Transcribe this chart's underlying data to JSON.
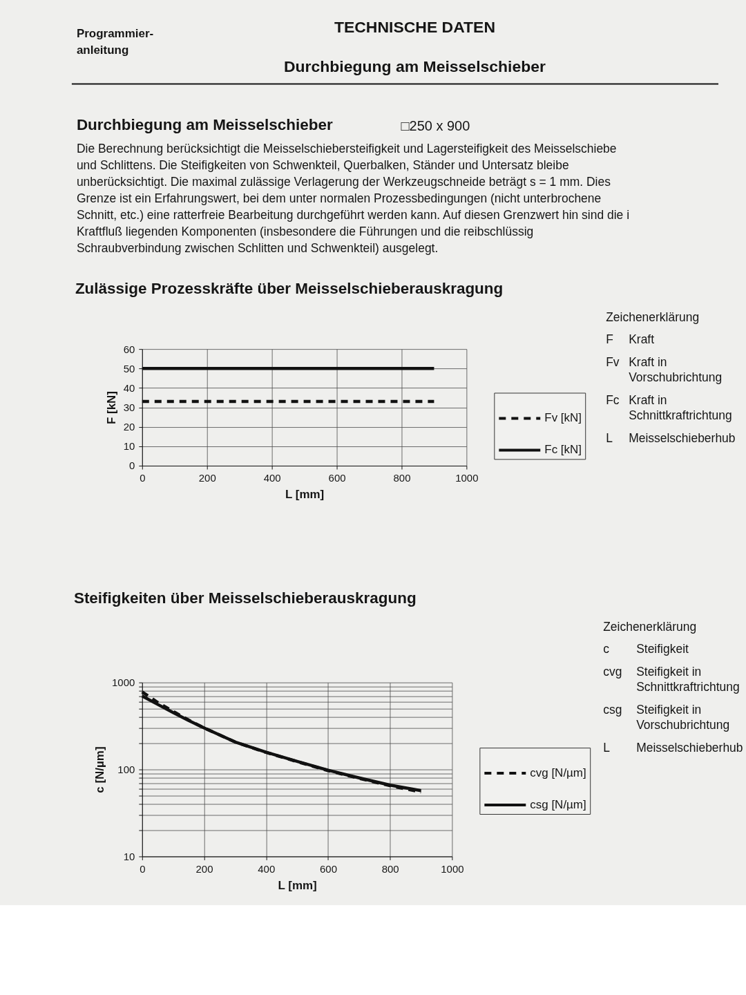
{
  "chart_data": [
    {
      "type": "other",
      "title": "TECHNISCHE DATEN",
      "subtitle": "Durchbiegung am Meisselschieber",
      "annotations": [
        "Programmier-",
        "anleitung",
        "Durchbiegung am Meisselschieber",
        "□250 x 900",
        "Die Berechnung berücksichtigt die Meisselschiebersteifigkeit und Lagersteifigkeit des Meisselschiebe",
        "und Schlittens. Die Steifigkeiten von Schwenkteil, Querbalken, Ständer und Untersatz bleibe",
        "unberücksichtigt. Die maximal zulässige Verlagerung der Werkzeugschneide beträgt s = 1 mm. Dies",
        "Grenze ist ein Erfahrungswert, bei dem unter normalen Prozessbedingungen (nicht unterbrochene",
        "Schnitt, etc.) eine ratterfreie Bearbeitung durchgeführt werden kann. Auf diesen Grenzwert hin sind die i",
        "Kraftfluß liegenden Komponenten (insbesondere die Führungen und die reibschlüssig",
        "Schraubverbindung zwischen Schlitten und Schwenkteil) ausgelegt."
      ]
    },
    {
      "type": "line",
      "title": "Zulässige Prozesskräfte über Meisselschieberauskragung",
      "xlabel": "L [mm]",
      "ylabel": "F [kN]",
      "x": [
        0,
        900
      ],
      "series": [
        {
          "name": "Fv [kN]",
          "color": "#111111",
          "line_style": "dashed",
          "values": [
            33,
            33
          ]
        },
        {
          "name": "Fc [kN]",
          "color": "#111111",
          "line_style": "solid",
          "values": [
            50,
            50
          ]
        }
      ],
      "xlim": [
        0,
        1000
      ],
      "xticks": [
        0,
        200,
        400,
        600,
        800,
        1000
      ],
      "ylim": [
        0,
        60
      ],
      "yticks": [
        0,
        10,
        20,
        30,
        40,
        50,
        60
      ],
      "grid": true,
      "legend": "right",
      "annotations": [
        "Zeichenerklärung",
        "F",
        "Kraft",
        "Fv",
        "Kraft in Vorschubrichtung",
        "Fc",
        "Kraft in Schnittkraftrichtung",
        "L",
        "Meisselschieberhub"
      ]
    },
    {
      "type": "line",
      "title": "Steifigkeiten über Meisselschieberauskragung",
      "xlabel": "L [mm]",
      "ylabel": "c [N/µm]",
      "x": [
        0,
        50,
        100,
        150,
        200,
        300,
        400,
        500,
        600,
        700,
        800,
        900
      ],
      "series": [
        {
          "name": "cvg [N/µm]",
          "color": "#111111",
          "line_style": "dashed",
          "values": [
            780,
            590,
            465,
            370,
            300,
            207,
            157,
            123,
            97,
            79,
            65,
            55
          ]
        },
        {
          "name": "csg [N/µm]",
          "color": "#111111",
          "line_style": "solid",
          "values": [
            700,
            560,
            450,
            365,
            300,
            207,
            158,
            124,
            98,
            80,
            66,
            57
          ]
        }
      ],
      "xlim": [
        0,
        1000
      ],
      "xticks": [
        0,
        200,
        400,
        600,
        800,
        1000
      ],
      "ylim": [
        10,
        1000
      ],
      "yticks": [
        10,
        {
          "value": 20,
          "label": null
        },
        {
          "value": 30,
          "label": null
        },
        {
          "value": 40,
          "label": null
        },
        {
          "value": 50,
          "label": null
        },
        {
          "value": 60,
          "label": null
        },
        {
          "value": 70,
          "label": null
        },
        {
          "value": 80,
          "label": null
        },
        {
          "value": 90,
          "label": null
        },
        100,
        {
          "value": 200,
          "label": null
        },
        {
          "value": 300,
          "label": null
        },
        {
          "value": 400,
          "label": null
        },
        {
          "value": 500,
          "label": null
        },
        {
          "value": 600,
          "label": null
        },
        {
          "value": 700,
          "label": null
        },
        {
          "value": 800,
          "label": null
        },
        {
          "value": 900,
          "label": null
        },
        1000
      ],
      "log": "y",
      "grid": true,
      "legend": "right",
      "annotations": [
        "Zeichenerklärung",
        "c",
        "Steifigkeit",
        "cvg",
        "Steifigkeit in Schnittkraftrichtung",
        "csg",
        "Steifigkeit in Vorschubrichtung",
        "L",
        "Meisselschieberhub"
      ]
    }
  ]
}
